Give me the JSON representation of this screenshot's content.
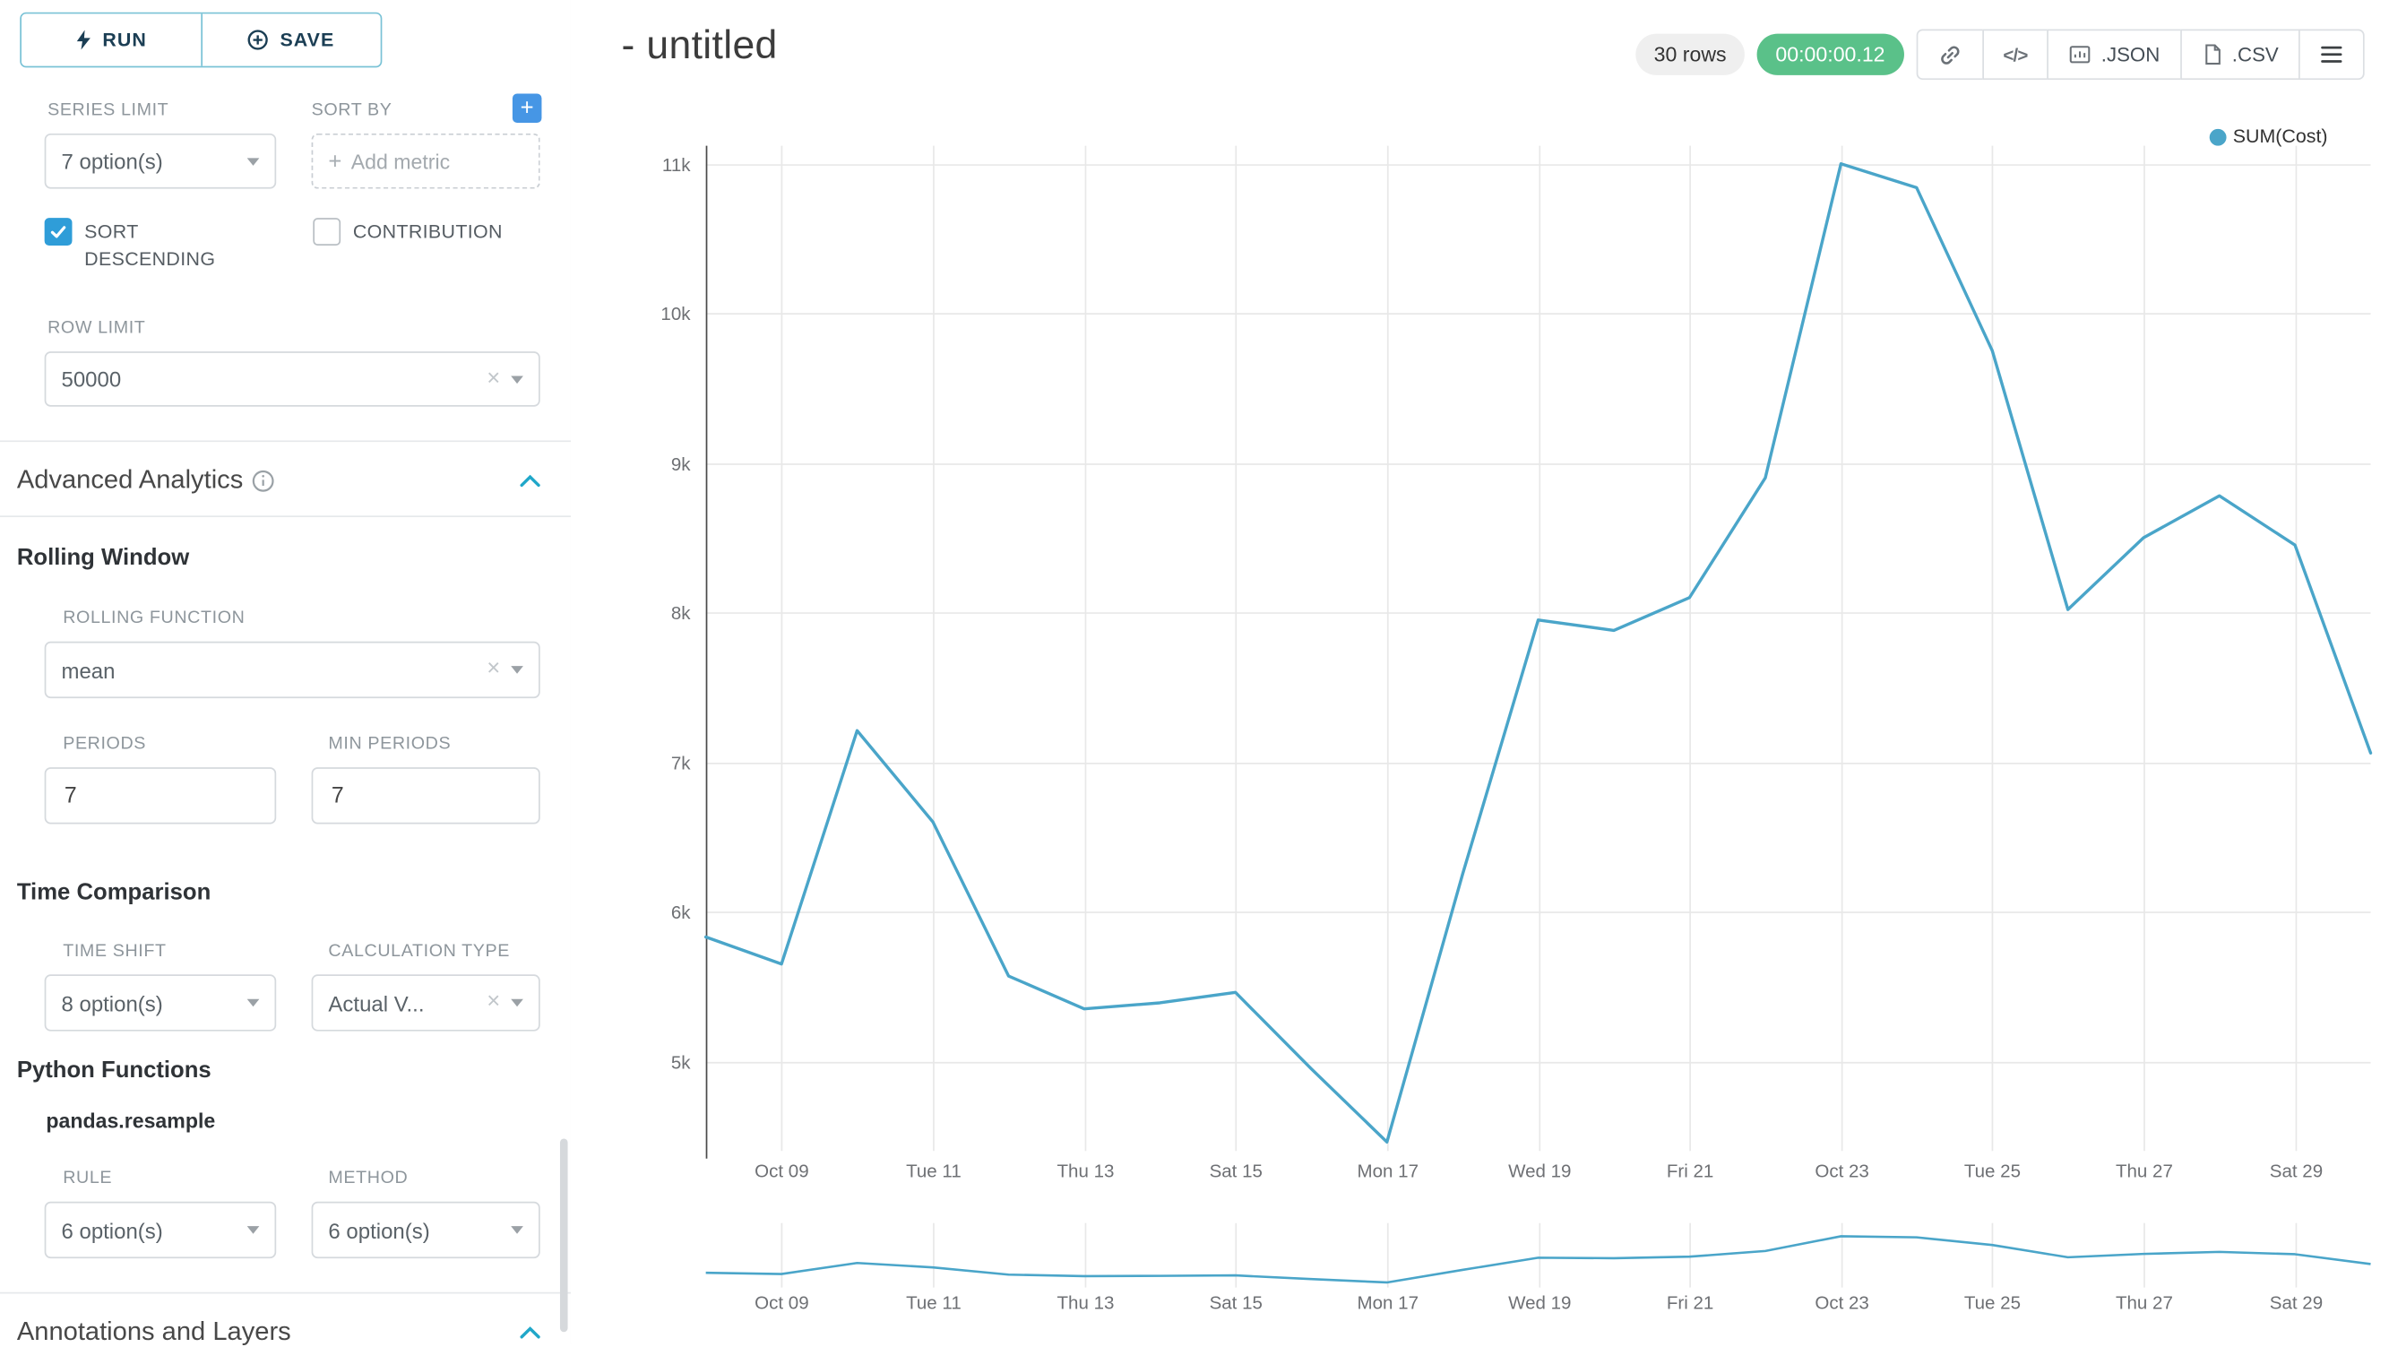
{
  "colors": {
    "series": "#4AA5C9",
    "timer_bg": "#5AC189",
    "accent_teal": "#20A7C9",
    "checkbox_blue": "#2F9DD8",
    "plus_button_blue": "#4696E5"
  },
  "sidebar": {
    "run": "RUN",
    "save": "SAVE",
    "series_limit_label": "SERIES LIMIT",
    "series_limit_value": "7 option(s)",
    "sort_by_label": "SORT BY",
    "add_metric_placeholder": "Add metric",
    "sort_descending_label": "SORT DESCENDING",
    "sort_descending_checked": true,
    "contribution_label": "CONTRIBUTION",
    "contribution_checked": false,
    "row_limit_label": "ROW LIMIT",
    "row_limit_value": "50000",
    "advanced_analytics_title": "Advanced Analytics",
    "rolling_window_title": "Rolling Window",
    "rolling_function_label": "ROLLING FUNCTION",
    "rolling_function_value": "mean",
    "periods_label": "PERIODS",
    "periods_value": "7",
    "min_periods_label": "MIN PERIODS",
    "min_periods_value": "7",
    "time_comparison_title": "Time Comparison",
    "time_shift_label": "TIME SHIFT",
    "time_shift_value": "8 option(s)",
    "calculation_type_label": "CALCULATION TYPE",
    "calculation_type_value": "Actual V...",
    "python_functions_title": "Python Functions",
    "python_functions_subtitle": "pandas.resample",
    "rule_label": "RULE",
    "rule_value": "6 option(s)",
    "method_label": "METHOD",
    "method_value": "6 option(s)",
    "annotations_title": "Annotations and Layers"
  },
  "header": {
    "title": "- untitled",
    "rows_badge": "30 rows",
    "timer": "00:00:00.12",
    "json_label": ".JSON",
    "csv_label": ".CSV"
  },
  "chart_data": {
    "type": "line",
    "title": "",
    "legend_position": "top-right",
    "grid": true,
    "color": "#4AA5C9",
    "ylim": [
      4400,
      11120
    ],
    "x": [
      "Oct 08",
      "Oct 09",
      "Oct 10",
      "Oct 11",
      "Oct 12",
      "Oct 13",
      "Oct 14",
      "Oct 15",
      "Oct 16",
      "Oct 17",
      "Oct 18",
      "Oct 19",
      "Oct 20",
      "Oct 21",
      "Oct 22",
      "Oct 23",
      "Oct 24",
      "Oct 25",
      "Oct 26",
      "Oct 27",
      "Oct 28",
      "Oct 29",
      "Oct 30"
    ],
    "series": [
      {
        "name": "SUM(Cost)",
        "values": [
          5830,
          5650,
          7210,
          6600,
          5570,
          5350,
          5390,
          5460,
          4950,
          4460,
          6250,
          7950,
          7880,
          8100,
          8900,
          11000,
          10840,
          9750,
          8020,
          8500,
          8780,
          8450,
          7060
        ]
      }
    ],
    "x_ticks": [
      {
        "index": 1,
        "label": "Oct 09"
      },
      {
        "index": 3,
        "label": "Tue 11"
      },
      {
        "index": 5,
        "label": "Thu 13"
      },
      {
        "index": 7,
        "label": "Sat 15"
      },
      {
        "index": 9,
        "label": "Mon 17"
      },
      {
        "index": 11,
        "label": "Wed 19"
      },
      {
        "index": 13,
        "label": "Fri 21"
      },
      {
        "index": 15,
        "label": "Oct 23"
      },
      {
        "index": 17,
        "label": "Tue 25"
      },
      {
        "index": 19,
        "label": "Thu 27"
      },
      {
        "index": 21,
        "label": "Sat 29"
      }
    ],
    "y_ticks": [
      {
        "value": 5000,
        "label": "5k"
      },
      {
        "value": 6000,
        "label": "6k"
      },
      {
        "value": 7000,
        "label": "7k"
      },
      {
        "value": 8000,
        "label": "8k"
      },
      {
        "value": 9000,
        "label": "9k"
      },
      {
        "value": 10000,
        "label": "10k"
      },
      {
        "value": 11000,
        "label": "11k"
      }
    ]
  }
}
